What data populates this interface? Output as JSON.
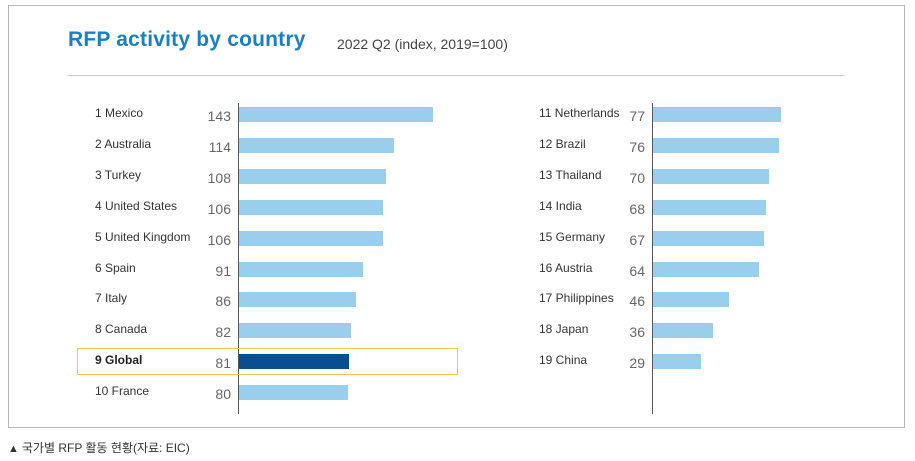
{
  "title": "RFP activity by country",
  "subtitle": "2022 Q2 (index, 2019=100)",
  "caption": "국가별 RFP 활동 현황(자료: EIC)",
  "chart_data": {
    "type": "bar",
    "orientation": "horizontal",
    "title": "RFP activity by country",
    "subtitle": "2022 Q2 (index, 2019=100)",
    "colors": {
      "bar": "#99cfec",
      "highlight": "#0b4e8d",
      "highlight_box": "#f1c84b",
      "title": "#1b7fc4"
    },
    "categories": [
      "1 Mexico",
      "2 Australia",
      "3 Turkey",
      "4 United States",
      "5 United Kingdom",
      "6 Spain",
      "7 Italy",
      "8 Canada",
      "9 Global",
      "10 France",
      "11 Netherlands",
      "12 Brazil",
      "13 Thailand",
      "14 India",
      "15 Germany",
      "16 Austria",
      "17 Philippines",
      "18 Japan",
      "19 China"
    ],
    "values": [
      143,
      114,
      108,
      106,
      106,
      91,
      86,
      82,
      81,
      80,
      77,
      76,
      70,
      68,
      67,
      64,
      46,
      36,
      29
    ],
    "highlight": "9 Global",
    "columns": [
      {
        "start": 0,
        "count": 10
      },
      {
        "start": 10,
        "count": 9
      }
    ]
  }
}
